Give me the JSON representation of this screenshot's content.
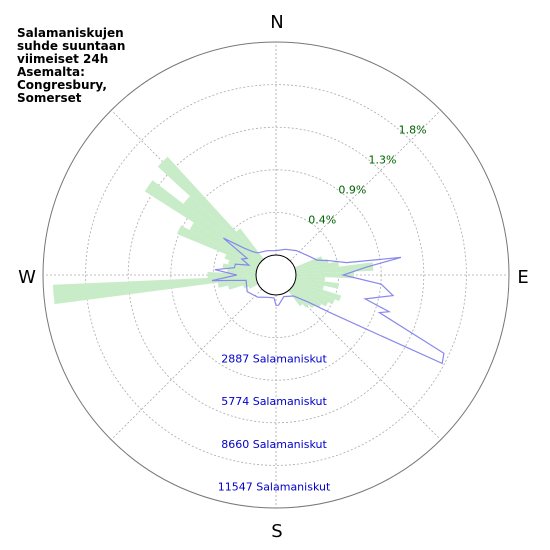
{
  "title_lines": [
    "Salamaniskujen",
    "suhde suuntaan",
    "viimeiset 24h",
    "Asemalta:",
    "Congresbury,",
    "Somerset"
  ],
  "compass": {
    "n": "N",
    "e": "E",
    "s": "S",
    "w": "W"
  },
  "chart_data": {
    "type": "polar",
    "title": "Salamaniskujen suhde suuntaan viimeiset 24h Asemalta: Congresbury, Somerset",
    "rings": 5,
    "radial_max_percent": 2.2,
    "radial_max_count": 14434,
    "percent_labels": [
      "0.4%",
      "0.9%",
      "1.3%",
      "1.8%"
    ],
    "count_labels": [
      "2887 Salamaniskut",
      "5774 Salamaniskut",
      "8660 Salamaniskut",
      "11547 Salamaniskut"
    ],
    "colors": {
      "bars": "#c8ecc8",
      "line": "#8888ee",
      "grid": "#aaaaaa",
      "percent_text": "#006400",
      "count_text": "#0000cc"
    },
    "series": [
      {
        "name": "",
        "kind": "bars",
        "direction_deg": [
          70,
          75,
          80,
          85,
          90,
          95,
          100,
          105,
          110,
          115,
          120,
          125,
          130,
          135,
          140,
          245,
          250,
          255,
          260,
          265,
          270,
          275,
          280,
          285,
          290,
          295,
          300,
          305,
          310,
          315,
          320
        ],
        "percent": [
          0.3,
          0.35,
          0.45,
          0.8,
          0.6,
          0.3,
          0.45,
          0.3,
          0.5,
          0.45,
          0.4,
          0.35,
          0.3,
          0.25,
          0.2,
          0.1,
          0.15,
          0.3,
          0.4,
          2.1,
          0.5,
          0.3,
          0.35,
          0.3,
          0.35,
          0.9,
          0.8,
          1.4,
          1.0,
          1.45,
          0.4
        ]
      },
      {
        "name": "",
        "kind": "line",
        "direction_deg": [
          0,
          20,
          40,
          60,
          70,
          75,
          80,
          82,
          85,
          90,
          95,
          100,
          105,
          108,
          110,
          115,
          118,
          120,
          125,
          130,
          140,
          160,
          175,
          180,
          185,
          200,
          220,
          240,
          260,
          265,
          270,
          275,
          280,
          285,
          290,
          295,
          300,
          305,
          310,
          315,
          320,
          340,
          360
        ],
        "count": [
          300,
          500,
          800,
          1200,
          1600,
          2400,
          3500,
          7200,
          4800,
          3200,
          5800,
          6700,
          4900,
          6700,
          6100,
          11200,
          11400,
          7000,
          3000,
          1500,
          500,
          200,
          700,
          700,
          200,
          250,
          600,
          900,
          700,
          3000,
          1300,
          2800,
          1500,
          1500,
          600,
          1200,
          900,
          3000,
          1500,
          900,
          600,
          400,
          300
        ]
      }
    ]
  }
}
